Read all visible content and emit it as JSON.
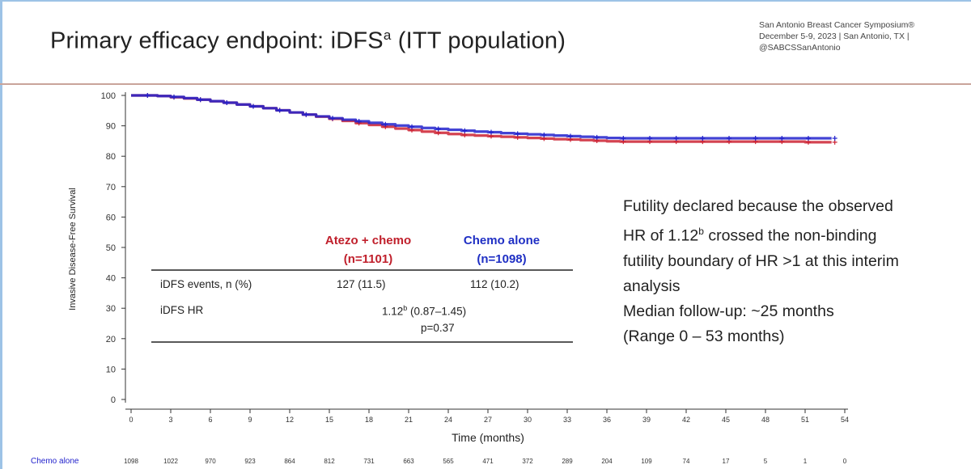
{
  "slide": {
    "title_main": "Primary efficacy endpoint: iDFS",
    "title_sup": "a",
    "title_tail": " (ITT population)",
    "conference": {
      "line1": "San Antonio Breast Cancer Symposium®",
      "line2": "December 5-9, 2023  |  San Antonio, TX  |",
      "line3": "@SABCSSanAntonio"
    },
    "note": {
      "line1": "Futility declared because the observed",
      "line2_pre": "HR of 1.12",
      "line2_sup": "b",
      "line2_post": " crossed the non-binding",
      "line3": "futility boundary of HR >1 at this interim",
      "line4": "analysis",
      "line5": "Median follow-up: ~25 months",
      "line6": "(Range 0 – 53 months)"
    },
    "table": {
      "col1_name": "Atezo + chemo",
      "col1_n": "(n=1101)",
      "col2_name": "Chemo alone",
      "col2_n": "(n=1098)",
      "row1_label": "iDFS events, n (%)",
      "row1_col1": "127 (11.5)",
      "row1_col2": "112 (10.2)",
      "row2_label": "iDFS HR",
      "row2_hr": "1.12",
      "row2_hr_sup": "b",
      "row2_ci": " (0.87–1.45)",
      "row2_p": "p=0.37"
    },
    "risk_table": {
      "label": "Chemo alone",
      "counts": [
        "1098",
        "1022",
        "970",
        "923",
        "864",
        "812",
        "731",
        "663",
        "565",
        "471",
        "372",
        "289",
        "204",
        "109",
        "74",
        "17",
        "5",
        "1",
        "0"
      ]
    },
    "colors": {
      "atezo": "#cc2233",
      "chemo": "#2222cc",
      "table_head_atezo": "#c0202c",
      "table_head_chemo": "#1f2fc4"
    }
  },
  "chart_data": {
    "type": "line",
    "title": "",
    "xlabel": "Time (months)",
    "ylabel": "Invasive Disease-Free Survival",
    "xlim": [
      0,
      54
    ],
    "ylim": [
      0,
      100
    ],
    "xticks": [
      0,
      3,
      6,
      9,
      12,
      15,
      18,
      21,
      24,
      27,
      30,
      33,
      36,
      39,
      42,
      45,
      48,
      51,
      54
    ],
    "yticks": [
      0,
      10,
      20,
      30,
      40,
      50,
      60,
      70,
      80,
      90,
      100
    ],
    "grid": false,
    "series": [
      {
        "name": "Atezo + chemo",
        "color": "#cc2233",
        "x": [
          0,
          1,
          2,
          3,
          4,
          5,
          6,
          7,
          8,
          9,
          10,
          11,
          12,
          13,
          14,
          15,
          16,
          17,
          18,
          19,
          20,
          21,
          22,
          23,
          24,
          25,
          26,
          27,
          28,
          29,
          30,
          31,
          32,
          33,
          34,
          35,
          36,
          37,
          38,
          39,
          40,
          41,
          42,
          43,
          44,
          45,
          46,
          47,
          48,
          49,
          50,
          51,
          52,
          53
        ],
        "y": [
          100,
          100,
          99.8,
          99.4,
          99,
          98.6,
          98.1,
          97.6,
          97,
          96.4,
          95.8,
          95.1,
          94.4,
          93.7,
          93,
          92.3,
          91.6,
          90.9,
          90.3,
          89.7,
          89.1,
          88.6,
          88.1,
          87.7,
          87.3,
          87,
          86.8,
          86.6,
          86.4,
          86.2,
          86,
          85.8,
          85.6,
          85.5,
          85.3,
          85.1,
          84.9,
          84.8,
          84.8,
          84.8,
          84.8,
          84.8,
          84.8,
          84.8,
          84.8,
          84.8,
          84.8,
          84.8,
          84.8,
          84.8,
          84.8,
          84.6,
          84.6,
          84.6
        ]
      },
      {
        "name": "Chemo alone",
        "color": "#2222cc",
        "x": [
          0,
          1,
          2,
          3,
          4,
          5,
          6,
          7,
          8,
          9,
          10,
          11,
          12,
          13,
          14,
          15,
          16,
          17,
          18,
          19,
          20,
          21,
          22,
          23,
          24,
          25,
          26,
          27,
          28,
          29,
          30,
          31,
          32,
          33,
          34,
          35,
          36,
          37,
          38,
          39,
          40,
          41,
          42,
          43,
          44,
          45,
          46,
          47,
          48,
          49,
          50,
          51,
          52,
          53
        ],
        "y": [
          100,
          100,
          99.8,
          99.5,
          99.1,
          98.6,
          98.1,
          97.6,
          97,
          96.4,
          95.8,
          95.1,
          94.4,
          93.7,
          93.1,
          92.5,
          92,
          91.5,
          91,
          90.5,
          90.1,
          89.7,
          89.3,
          89,
          88.7,
          88.4,
          88.1,
          87.9,
          87.6,
          87.4,
          87.2,
          87,
          86.8,
          86.6,
          86.4,
          86.2,
          86,
          85.9,
          85.9,
          85.9,
          85.9,
          85.9,
          85.9,
          85.9,
          85.9,
          85.9,
          85.9,
          85.9,
          85.9,
          85.9,
          85.9,
          85.9,
          85.9,
          85.9
        ]
      }
    ]
  }
}
